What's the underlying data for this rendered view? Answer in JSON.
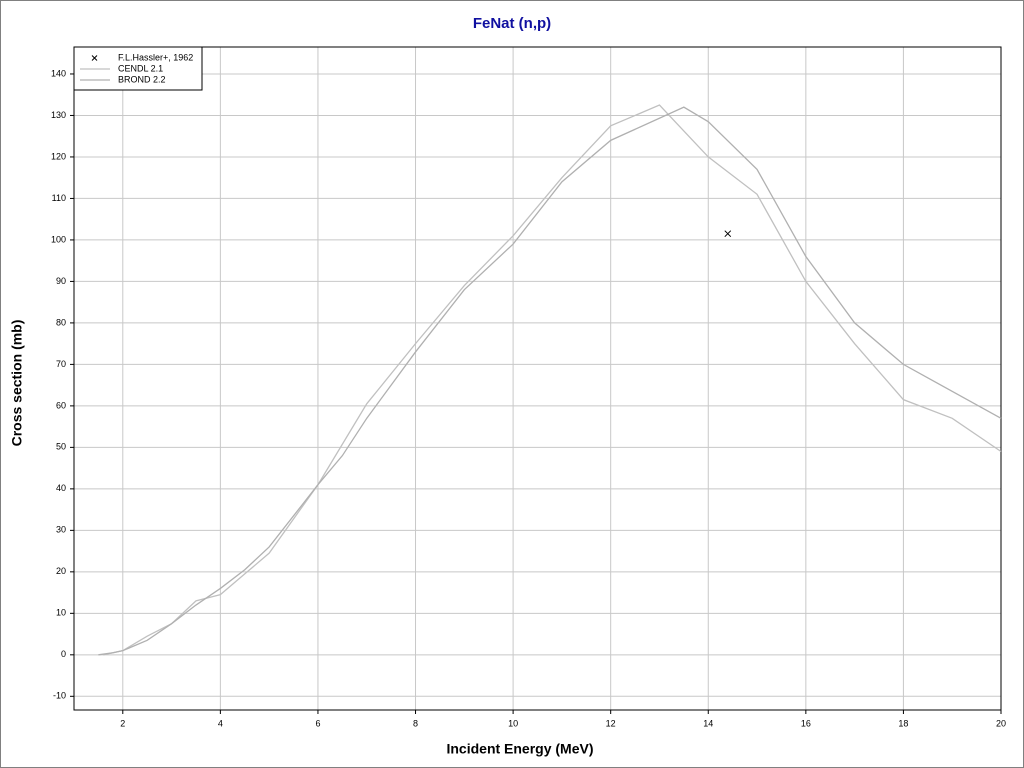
{
  "chart_data": {
    "type": "line",
    "title": "FeNat (n,p)",
    "x_label": "Incident Energy (MeV)",
    "y_label": "Cross section (mb)",
    "xlim": [
      1,
      20
    ],
    "ylim": [
      -13.3,
      146.5
    ],
    "xticks": [
      2,
      4,
      6,
      8,
      10,
      12,
      14,
      16,
      18,
      20
    ],
    "yticks": [
      -10,
      0,
      10,
      20,
      30,
      40,
      50,
      60,
      70,
      80,
      90,
      100,
      110,
      120,
      130,
      140
    ],
    "grid": true,
    "legend": "top-left",
    "series": [
      {
        "name": "F.L.Hassler+, 1962",
        "kind": "scatter",
        "color": "#000000",
        "x": [
          14.4
        ],
        "values": [
          101.5
        ]
      },
      {
        "name": "CENDL 2.1",
        "kind": "line",
        "color": "#c0c0c0",
        "x": [
          1.6,
          2,
          2.5,
          3,
          3.5,
          4,
          4.5,
          5,
          6,
          7,
          8,
          9,
          10,
          11,
          12,
          13,
          14,
          15,
          16,
          17,
          18,
          19,
          20
        ],
        "values": [
          0,
          1,
          4.5,
          7.5,
          13,
          14.5,
          19.5,
          24.5,
          41,
          60.5,
          75,
          89,
          101,
          115,
          127.5,
          132.5,
          120,
          111,
          90,
          75,
          61.5,
          57,
          49
        ]
      },
      {
        "name": "BROND 2.2",
        "kind": "line",
        "color": "#b0b0b0",
        "x": [
          1.5,
          1.8,
          2,
          2.5,
          3,
          3.5,
          4,
          4.5,
          5,
          6,
          6.5,
          7,
          8,
          9,
          10,
          11,
          12,
          13.5,
          14,
          15,
          16,
          17,
          18,
          20
        ],
        "values": [
          0,
          0.5,
          1,
          3.5,
          7.5,
          12,
          16,
          20.5,
          26,
          41,
          48,
          57,
          73,
          88,
          99,
          114,
          124,
          132,
          128.5,
          117,
          96,
          80,
          70,
          57
        ]
      }
    ]
  }
}
